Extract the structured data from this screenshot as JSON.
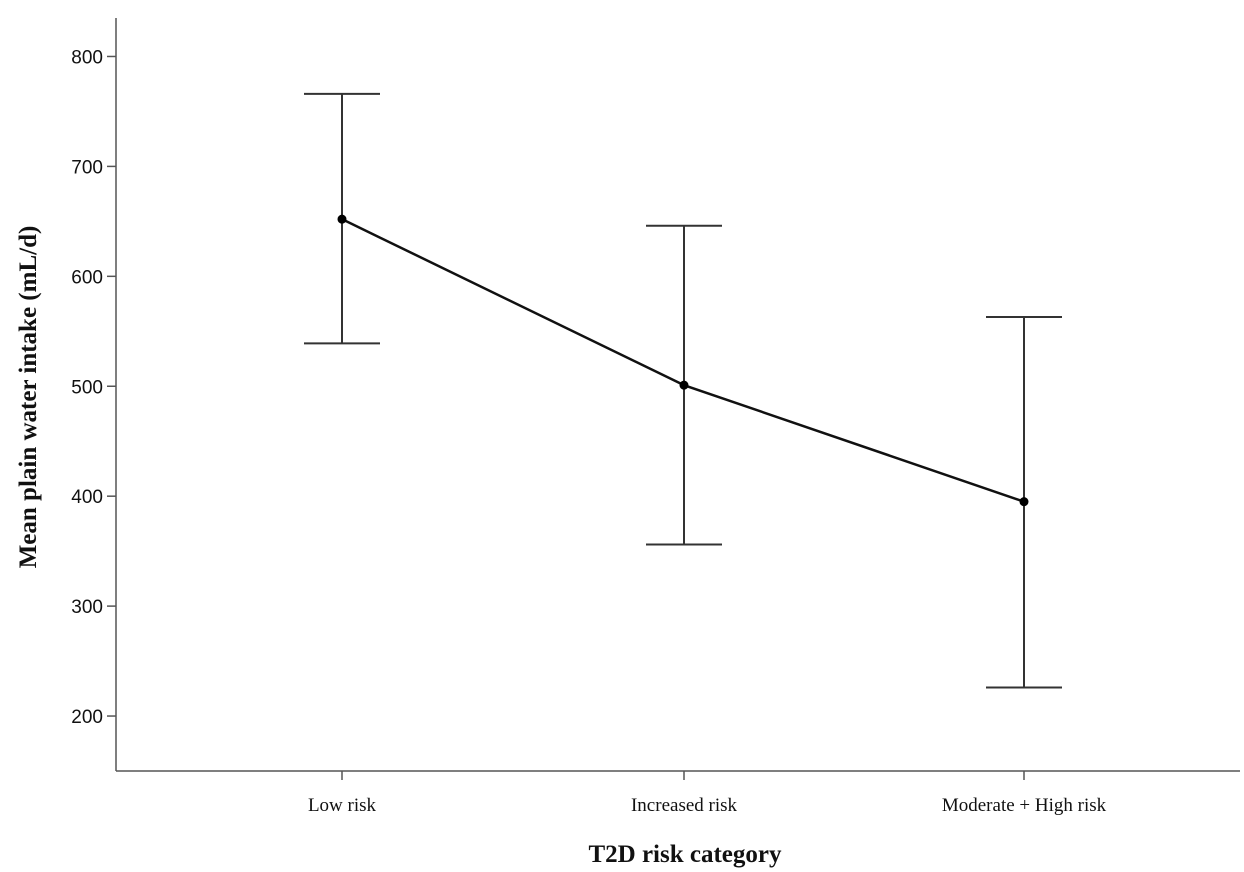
{
  "chart_data": {
    "type": "line",
    "title": "",
    "xlabel": "T2D risk category",
    "ylabel": "Mean plain water intake (mL/d)",
    "categories": [
      "Low risk",
      "Increased risk",
      "Moderate + High risk"
    ],
    "series": [
      {
        "values": [
          652,
          501,
          395
        ],
        "error_lower": [
          539,
          356,
          226
        ],
        "error_upper": [
          766,
          646,
          563
        ]
      }
    ],
    "yticks": [
      200,
      300,
      400,
      500,
      600,
      700,
      800
    ],
    "ylim": [
      150,
      835
    ],
    "grid": false,
    "legend": "none"
  }
}
